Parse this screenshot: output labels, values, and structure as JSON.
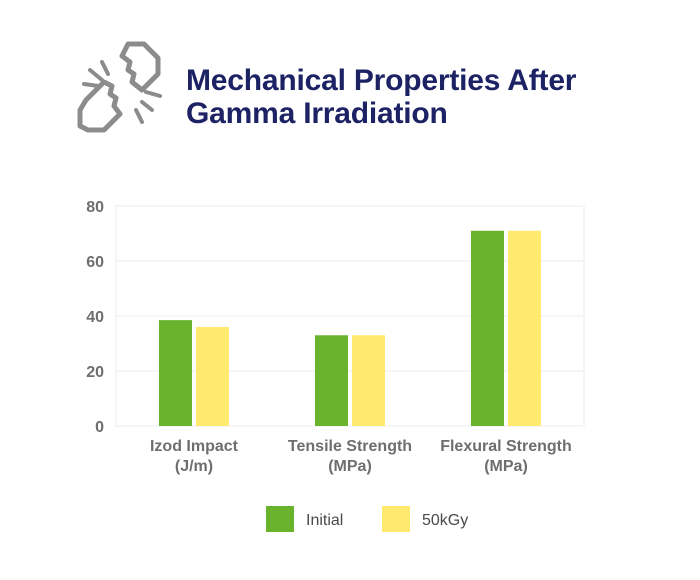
{
  "title_lines": [
    "Mechanical Properties After",
    "Gamma Irradiation"
  ],
  "header_icon": "broken-bar-icon",
  "chart_data": {
    "type": "bar",
    "categories": [
      [
        "Izod Impact",
        "(J/m)"
      ],
      [
        "Tensile Strength",
        "(MPa)"
      ],
      [
        "Flexural Strength",
        "(MPa)"
      ]
    ],
    "series": [
      {
        "name": "Initial",
        "color": "#6ab42d",
        "values": [
          38.5,
          33,
          71
        ]
      },
      {
        "name": "50kGy",
        "color": "#ffe96e",
        "values": [
          36,
          33,
          71
        ]
      }
    ],
    "yticks": [
      0,
      20,
      40,
      60,
      80
    ],
    "ylim": [
      0,
      80
    ],
    "grid": true,
    "legend_position": "bottom-center"
  }
}
